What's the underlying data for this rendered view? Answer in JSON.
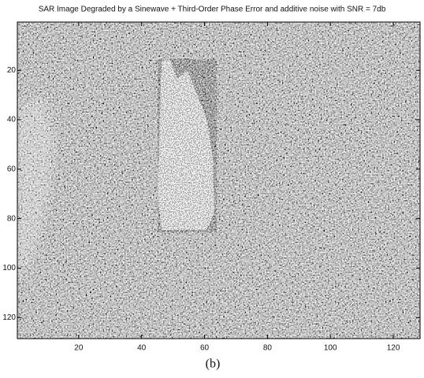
{
  "chart_data": {
    "type": "image",
    "title": "SAR Image Degraded by a Sinewave + Third-Order Phase Error and additive noise with SNR =  7db",
    "caption": "(b)",
    "xlim": [
      0.5,
      128.5
    ],
    "xticks": [
      20,
      40,
      60,
      80,
      100,
      120
    ],
    "ylim": [
      0.5,
      128.5
    ],
    "yticks": [
      20,
      40,
      60,
      80,
      100,
      120
    ],
    "y_reversed": true
  }
}
